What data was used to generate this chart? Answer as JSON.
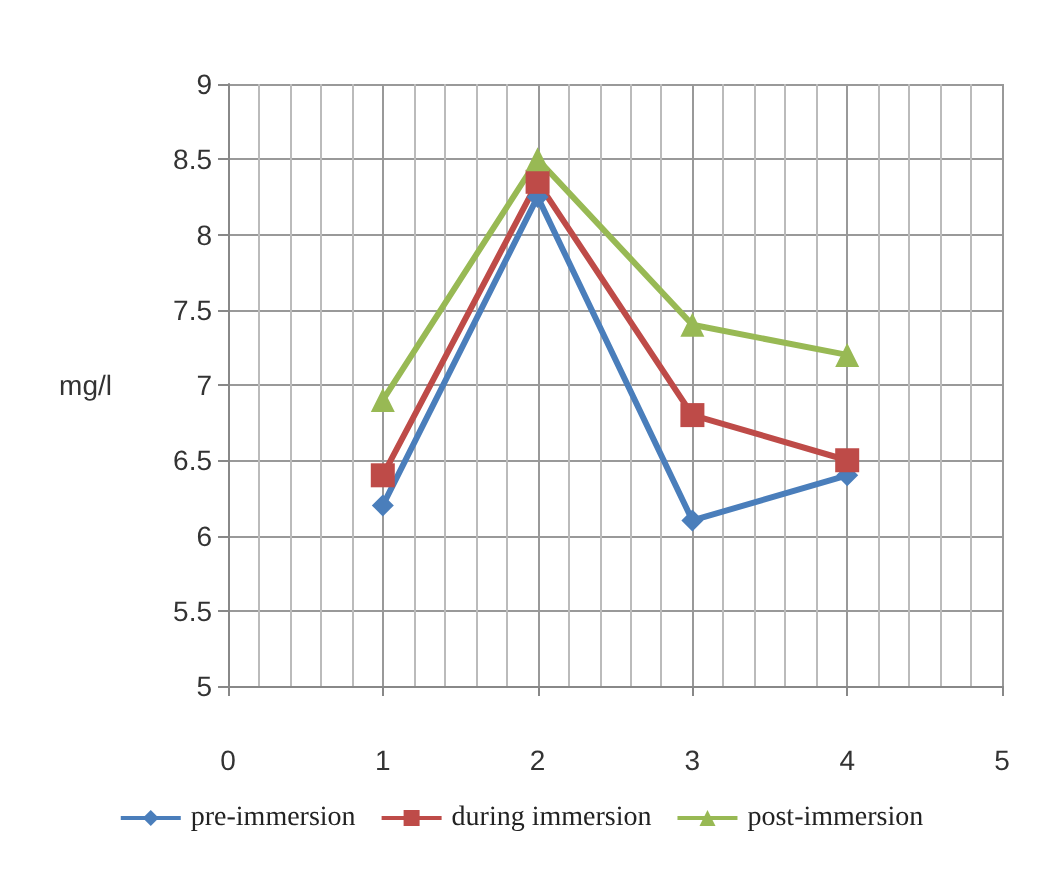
{
  "chart_data": {
    "type": "line",
    "ylabel": "mg/l",
    "x": [
      1,
      2,
      3,
      4
    ],
    "series": [
      {
        "name": "pre-immersion",
        "color": "#4a7ebb",
        "marker": "diamond",
        "values": [
          6.2,
          8.25,
          6.1,
          6.4
        ]
      },
      {
        "name": "during immersion",
        "color": "#be4b48",
        "marker": "square",
        "values": [
          6.4,
          8.35,
          6.8,
          6.5
        ]
      },
      {
        "name": "post-immersion",
        "color": "#98b954",
        "marker": "triangle",
        "values": [
          6.9,
          8.5,
          7.4,
          7.2
        ]
      }
    ],
    "xlim": [
      0,
      5
    ],
    "xticks": [
      0,
      1,
      2,
      3,
      4,
      5
    ],
    "ylim": [
      5,
      9
    ],
    "yticks": [
      5,
      5.5,
      6,
      6.5,
      7,
      7.5,
      8,
      8.5,
      9
    ],
    "grid": true,
    "legend": "bottom",
    "line_style": "solid"
  }
}
